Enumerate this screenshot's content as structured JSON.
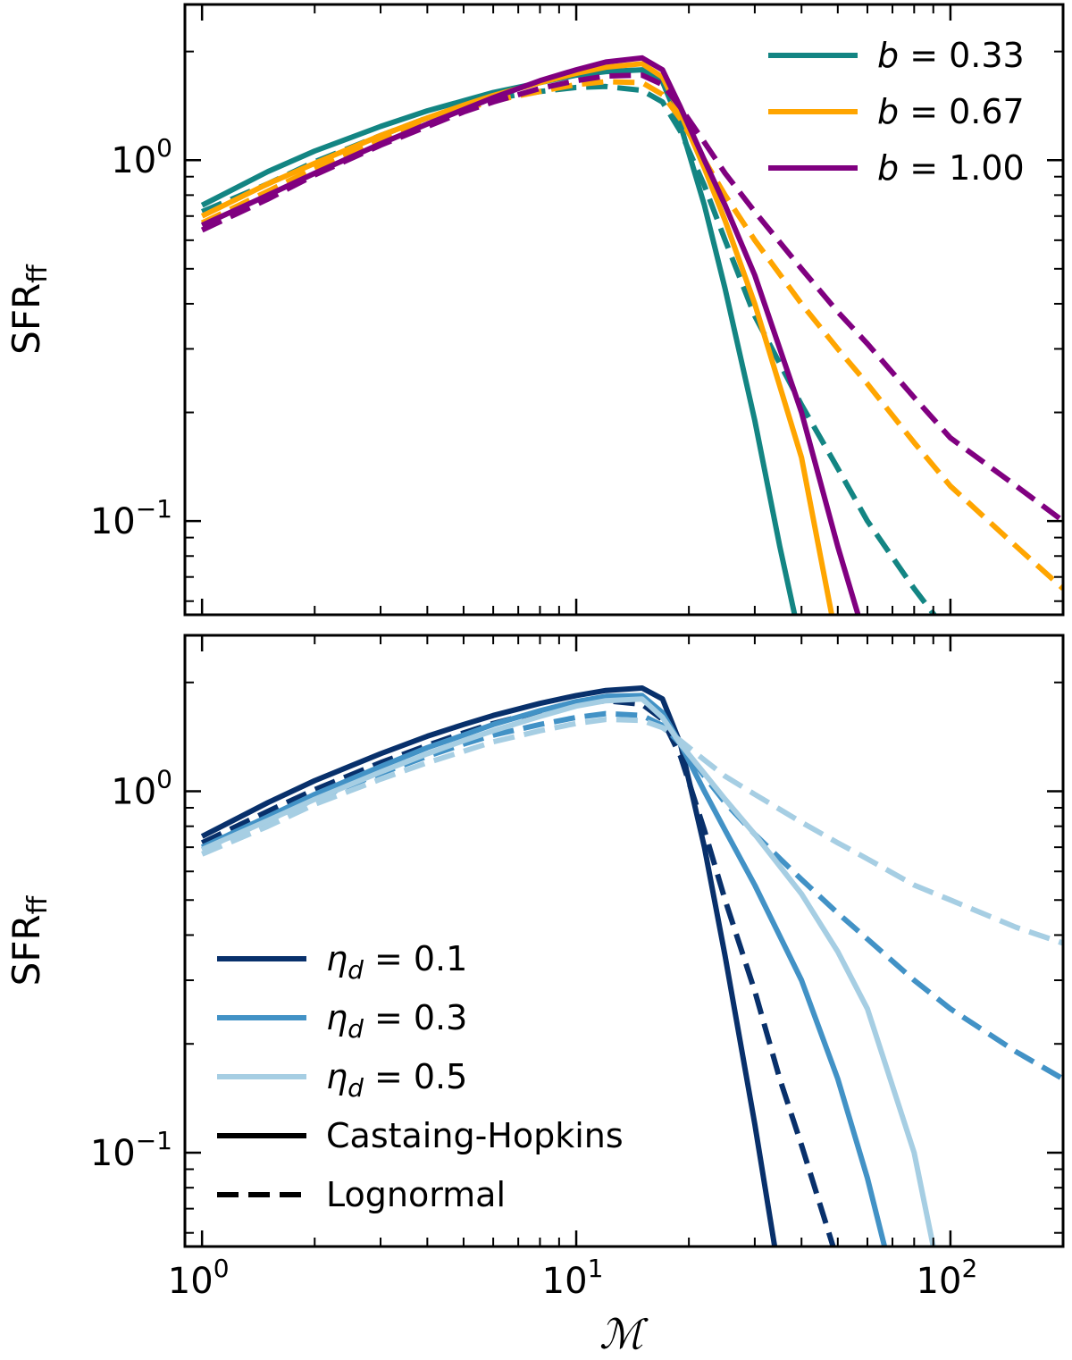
{
  "chart_data": [
    {
      "type": "line",
      "xlabel": "ℳ",
      "ylabel_main": "SFR",
      "ylabel_sub": "ff",
      "xscale": "log",
      "yscale": "log",
      "xlim": [
        0.9,
        200
      ],
      "ylim": [
        0.055,
        2.7
      ],
      "xticks": [
        {
          "value": 1,
          "base": "10",
          "exp": "0"
        },
        {
          "value": 10,
          "base": "10",
          "exp": "1"
        },
        {
          "value": 100,
          "base": "10",
          "exp": "2"
        }
      ],
      "yticks": [
        {
          "value": 0.1,
          "base": "10",
          "exp": "−1"
        },
        {
          "value": 1,
          "base": "10",
          "exp": "0"
        }
      ],
      "legend_position": "top-right",
      "legend": [
        {
          "label": "b = 0.33",
          "color": "#138583",
          "style": "solid"
        },
        {
          "label": "b = 0.67",
          "color": "#FFA500",
          "style": "solid"
        },
        {
          "label": "b = 1.00",
          "color": "#800080",
          "style": "solid"
        }
      ],
      "series": [
        {
          "name": "b = 0.33",
          "model": "Castaing-Hopkins",
          "color": "#138583",
          "style": "solid",
          "x": [
            1,
            1.5,
            2,
            3,
            4,
            5,
            6,
            8,
            10,
            12,
            15,
            17,
            19,
            22,
            25,
            30,
            35,
            40
          ],
          "y": [
            0.75,
            0.93,
            1.06,
            1.24,
            1.37,
            1.46,
            1.54,
            1.64,
            1.72,
            1.76,
            1.78,
            1.65,
            1.25,
            0.75,
            0.44,
            0.19,
            0.085,
            0.045
          ]
        },
        {
          "name": "b = 0.33",
          "model": "Lognormal",
          "color": "#138583",
          "style": "dashed",
          "x": [
            1,
            1.5,
            2,
            3,
            4,
            5,
            6,
            8,
            10,
            12,
            15,
            17,
            19,
            22,
            25,
            30,
            40,
            50,
            60,
            80,
            100
          ],
          "y": [
            0.72,
            0.86,
            0.99,
            1.17,
            1.31,
            1.4,
            1.48,
            1.55,
            1.59,
            1.6,
            1.56,
            1.45,
            1.2,
            0.85,
            0.6,
            0.37,
            0.21,
            0.14,
            0.1,
            0.065,
            0.048
          ]
        },
        {
          "name": "b = 0.67",
          "model": "Castaing-Hopkins",
          "color": "#FFA500",
          "style": "solid",
          "x": [
            1,
            1.5,
            2,
            3,
            4,
            5,
            6,
            8,
            10,
            12,
            15,
            17,
            19,
            22,
            25,
            30,
            40,
            50
          ],
          "y": [
            0.7,
            0.86,
            0.98,
            1.17,
            1.31,
            1.42,
            1.51,
            1.64,
            1.74,
            1.81,
            1.85,
            1.7,
            1.35,
            0.95,
            0.68,
            0.4,
            0.15,
            0.045
          ]
        },
        {
          "name": "b = 0.67",
          "model": "Lognormal",
          "color": "#FFA500",
          "style": "dashed",
          "x": [
            1,
            1.5,
            2,
            3,
            4,
            5,
            6,
            8,
            10,
            12,
            15,
            17,
            19,
            22,
            25,
            30,
            40,
            50,
            60,
            80,
            100,
            150,
            200
          ],
          "y": [
            0.67,
            0.82,
            0.95,
            1.13,
            1.27,
            1.38,
            1.46,
            1.55,
            1.62,
            1.65,
            1.64,
            1.52,
            1.3,
            1.0,
            0.8,
            0.6,
            0.4,
            0.3,
            0.24,
            0.165,
            0.125,
            0.085,
            0.065
          ]
        },
        {
          "name": "b = 1.00",
          "model": "Castaing-Hopkins",
          "color": "#800080",
          "style": "solid",
          "x": [
            1,
            1.5,
            2,
            3,
            4,
            5,
            6,
            8,
            10,
            12,
            15,
            17,
            19,
            22,
            25,
            30,
            40,
            50,
            60
          ],
          "y": [
            0.66,
            0.8,
            0.92,
            1.11,
            1.26,
            1.38,
            1.49,
            1.66,
            1.78,
            1.87,
            1.92,
            1.78,
            1.4,
            1.0,
            0.75,
            0.48,
            0.2,
            0.085,
            0.045
          ]
        },
        {
          "name": "b = 1.00",
          "model": "Lognormal",
          "color": "#800080",
          "style": "dashed",
          "x": [
            1,
            1.5,
            2,
            3,
            4,
            5,
            6,
            8,
            10,
            12,
            15,
            17,
            19,
            22,
            25,
            30,
            40,
            50,
            60,
            80,
            100,
            150,
            200
          ],
          "y": [
            0.64,
            0.78,
            0.91,
            1.1,
            1.24,
            1.36,
            1.45,
            1.58,
            1.66,
            1.71,
            1.72,
            1.62,
            1.4,
            1.12,
            0.92,
            0.72,
            0.5,
            0.38,
            0.31,
            0.22,
            0.17,
            0.125,
            0.1
          ]
        }
      ]
    },
    {
      "type": "line",
      "xlabel": "ℳ",
      "ylabel_main": "SFR",
      "ylabel_sub": "ff",
      "xscale": "log",
      "yscale": "log",
      "xlim": [
        0.9,
        200
      ],
      "ylim": [
        0.055,
        2.7
      ],
      "xticks": [
        {
          "value": 1,
          "base": "10",
          "exp": "0"
        },
        {
          "value": 10,
          "base": "10",
          "exp": "1"
        },
        {
          "value": 100,
          "base": "10",
          "exp": "2"
        }
      ],
      "yticks": [
        {
          "value": 0.1,
          "base": "10",
          "exp": "−1"
        },
        {
          "value": 1,
          "base": "10",
          "exp": "0"
        }
      ],
      "legend_position": "bottom-left",
      "legend": [
        {
          "label": "η_d = 0.1",
          "color": "#08306B",
          "style": "solid"
        },
        {
          "label": "η_d = 0.3",
          "color": "#4292C6",
          "style": "solid"
        },
        {
          "label": "η_d = 0.5",
          "color": "#A6CEE3",
          "style": "solid"
        },
        {
          "label": "Castaing-Hopkins",
          "color": "#000000",
          "style": "solid"
        },
        {
          "label": "Lognormal",
          "color": "#000000",
          "style": "dashed"
        }
      ],
      "series": [
        {
          "name": "η_d = 0.1",
          "model": "Castaing-Hopkins",
          "color": "#08306B",
          "style": "solid",
          "x": [
            1,
            1.5,
            2,
            3,
            4,
            5,
            6,
            8,
            10,
            12,
            15,
            17,
            19,
            22,
            25,
            30,
            35
          ],
          "y": [
            0.75,
            0.93,
            1.07,
            1.27,
            1.42,
            1.53,
            1.62,
            1.75,
            1.84,
            1.9,
            1.93,
            1.8,
            1.35,
            0.7,
            0.35,
            0.12,
            0.045
          ]
        },
        {
          "name": "η_d = 0.1",
          "model": "Lognormal",
          "color": "#08306B",
          "style": "dashed",
          "x": [
            1,
            1.5,
            2,
            3,
            4,
            5,
            6,
            8,
            10,
            12,
            15,
            17,
            19,
            22,
            25,
            30,
            35,
            40,
            50
          ],
          "y": [
            0.72,
            0.88,
            1.01,
            1.2,
            1.34,
            1.45,
            1.54,
            1.66,
            1.74,
            1.78,
            1.74,
            1.58,
            1.25,
            0.78,
            0.5,
            0.28,
            0.16,
            0.105,
            0.05
          ]
        },
        {
          "name": "η_d = 0.3",
          "model": "Castaing-Hopkins",
          "color": "#4292C6",
          "style": "solid",
          "x": [
            1,
            1.5,
            2,
            3,
            4,
            5,
            6,
            8,
            10,
            12,
            15,
            17,
            19,
            22,
            25,
            30,
            40,
            50,
            60,
            70
          ],
          "y": [
            0.7,
            0.85,
            0.98,
            1.17,
            1.32,
            1.43,
            1.53,
            1.67,
            1.77,
            1.83,
            1.84,
            1.65,
            1.35,
            1.0,
            0.78,
            0.55,
            0.3,
            0.16,
            0.085,
            0.045
          ]
        },
        {
          "name": "η_d = 0.3",
          "model": "Lognormal",
          "color": "#4292C6",
          "style": "dashed",
          "x": [
            1,
            1.5,
            2,
            3,
            4,
            5,
            6,
            8,
            10,
            12,
            15,
            17,
            19,
            22,
            25,
            30,
            40,
            50,
            60,
            80,
            100,
            150,
            200
          ],
          "y": [
            0.69,
            0.83,
            0.95,
            1.12,
            1.25,
            1.35,
            1.43,
            1.53,
            1.6,
            1.64,
            1.62,
            1.52,
            1.35,
            1.1,
            0.93,
            0.76,
            0.57,
            0.46,
            0.39,
            0.3,
            0.25,
            0.19,
            0.16
          ]
        },
        {
          "name": "η_d = 0.5",
          "model": "Castaing-Hopkins",
          "color": "#A6CEE3",
          "style": "solid",
          "x": [
            1,
            1.5,
            2,
            3,
            4,
            5,
            6,
            8,
            10,
            12,
            15,
            17,
            19,
            22,
            25,
            30,
            40,
            50,
            60,
            80,
            90
          ],
          "y": [
            0.69,
            0.83,
            0.95,
            1.13,
            1.27,
            1.38,
            1.47,
            1.61,
            1.72,
            1.78,
            1.8,
            1.6,
            1.35,
            1.12,
            0.95,
            0.76,
            0.52,
            0.36,
            0.25,
            0.1,
            0.055
          ]
        },
        {
          "name": "η_d = 0.5",
          "model": "Lognormal",
          "color": "#A6CEE3",
          "style": "dashed",
          "x": [
            1,
            1.5,
            2,
            3,
            4,
            5,
            6,
            8,
            10,
            12,
            15,
            17,
            19,
            22,
            25,
            30,
            40,
            50,
            60,
            80,
            100,
            150,
            200
          ],
          "y": [
            0.67,
            0.8,
            0.92,
            1.08,
            1.2,
            1.29,
            1.37,
            1.47,
            1.54,
            1.58,
            1.57,
            1.5,
            1.38,
            1.22,
            1.1,
            0.98,
            0.82,
            0.72,
            0.65,
            0.55,
            0.5,
            0.42,
            0.38
          ]
        }
      ]
    }
  ]
}
